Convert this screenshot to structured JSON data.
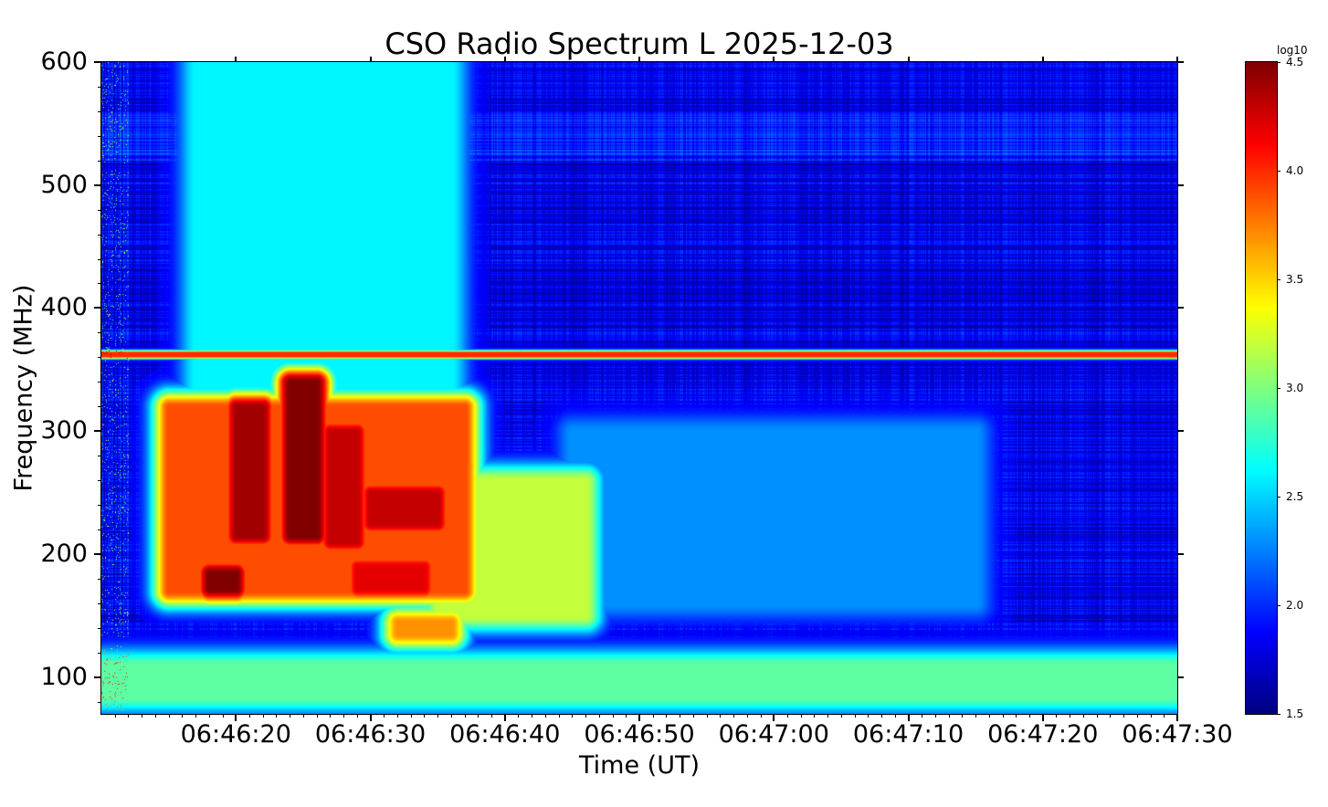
{
  "chart_data": {
    "type": "heatmap",
    "title": "CSO Radio Spectrum L 2025-12-03",
    "xlabel": "Time (UT)",
    "ylabel": "Frequency (MHz)",
    "xlim": [
      "06:46:10",
      "06:47:30"
    ],
    "ylim": [
      70,
      600
    ],
    "x_ticks": [
      "06:46:20",
      "06:46:30",
      "06:46:40",
      "06:46:50",
      "06:47:00",
      "06:47:10",
      "06:47:20",
      "06:47:30"
    ],
    "y_ticks": [
      "100",
      "200",
      "300",
      "400",
      "500",
      "600"
    ],
    "colorbar": {
      "label": "log10",
      "range": [
        1.5,
        4.5
      ],
      "colormap": "jet",
      "ticks": [
        "1.5",
        "2.0",
        "2.5",
        "3.0",
        "3.5",
        "4.0",
        "4.5"
      ]
    },
    "background_log10": 1.8,
    "emission_regions": [
      {
        "t0": "06:46:17",
        "t1": "06:46:36",
        "f0": 200,
        "f1": 600,
        "log10": 2.6
      },
      {
        "t0": "06:46:15",
        "t1": "06:46:37",
        "f0": 170,
        "f1": 320,
        "log10": 3.9
      },
      {
        "t0": "06:46:20",
        "t1": "06:46:22",
        "f0": 215,
        "f1": 320,
        "log10": 4.4
      },
      {
        "t0": "06:46:24",
        "t1": "06:46:26",
        "f0": 215,
        "f1": 340,
        "log10": 4.5
      },
      {
        "t0": "06:46:27",
        "t1": "06:46:29",
        "f0": 210,
        "f1": 300,
        "log10": 4.3
      },
      {
        "t0": "06:46:30",
        "t1": "06:46:35",
        "f0": 225,
        "f1": 250,
        "log10": 4.3
      },
      {
        "t0": "06:46:18",
        "t1": "06:46:20",
        "f0": 172,
        "f1": 185,
        "log10": 4.5
      },
      {
        "t0": "06:46:29",
        "t1": "06:46:34",
        "f0": 172,
        "f1": 190,
        "log10": 4.2
      },
      {
        "t0": "06:46:35",
        "t1": "06:46:46",
        "f0": 150,
        "f1": 260,
        "log10": 3.2
      },
      {
        "t0": "06:46:32",
        "t1": "06:46:36",
        "f0": 135,
        "f1": 145,
        "log10": 3.7
      },
      {
        "t0": "06:46:45",
        "t1": "06:47:15",
        "f0": 160,
        "f1": 300,
        "log10": 2.3
      },
      {
        "t0": "06:46:10",
        "t1": "06:47:30",
        "f0": 84,
        "f1": 110,
        "log10": 2.9
      },
      {
        "t0": "06:46:10",
        "t1": "06:47:30",
        "f0": 361,
        "f1": 364,
        "log10": 4.0
      }
    ]
  }
}
